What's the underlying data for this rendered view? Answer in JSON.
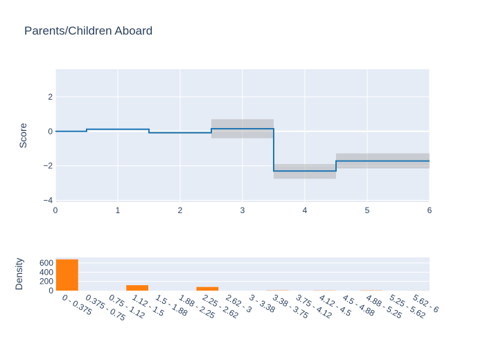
{
  "chart_data": [
    {
      "type": "line",
      "subtype": "step",
      "title": "Parents/Children Aboard",
      "xlabel": "",
      "ylabel": "Score",
      "xlim": [
        0,
        6
      ],
      "ylim": [
        -4.1,
        3.6
      ],
      "x_ticks": [
        0,
        1,
        2,
        3,
        4,
        5,
        6
      ],
      "y_ticks": [
        -4,
        -2,
        0,
        2
      ],
      "y_tick_labels": [
        "−4",
        "−2",
        "0",
        "2"
      ],
      "grid": true,
      "line_color": "#1f77b4",
      "band_color": "#a6a6a6",
      "steps": [
        {
          "x0": 0.0,
          "x1": 0.5,
          "y": 0.0,
          "lower": 0.0,
          "upper": 0.0
        },
        {
          "x0": 0.5,
          "x1": 1.5,
          "y": 0.12,
          "lower": 0.1,
          "upper": 0.14
        },
        {
          "x0": 1.5,
          "x1": 2.5,
          "y": -0.08,
          "lower": -0.14,
          "upper": -0.02
        },
        {
          "x0": 2.5,
          "x1": 3.5,
          "y": 0.15,
          "lower": -0.4,
          "upper": 0.7
        },
        {
          "x0": 3.5,
          "x1": 4.5,
          "y": -2.3,
          "lower": -2.75,
          "upper": -1.9
        },
        {
          "x0": 4.5,
          "x1": 6.0,
          "y": -1.72,
          "lower": -2.15,
          "upper": -1.28
        }
      ]
    },
    {
      "type": "bar",
      "xlabel": "",
      "ylabel": "Density",
      "ylim": [
        0,
        720
      ],
      "y_ticks": [
        0,
        200,
        400,
        600
      ],
      "bar_color": "#ff7f0e",
      "categories": [
        "0 - 0.375",
        "0.375 - 0.75",
        "0.75 - 1.12",
        "1.12 - 1.5",
        "1.5 - 1.88",
        "1.88 - 2.25",
        "2.25 - 2.62",
        "2.62 - 3",
        "3 - 3.38",
        "3.38 - 3.75",
        "3.75 - 4.12",
        "4.12 - 4.5",
        "4.5 - 4.88",
        "4.88 - 5.25",
        "5.25 - 5.62",
        "5.62 - 6"
      ],
      "values": [
        678,
        0,
        0,
        118,
        0,
        0,
        80,
        0,
        0,
        5,
        0,
        4,
        0,
        5,
        0,
        1
      ]
    }
  ]
}
